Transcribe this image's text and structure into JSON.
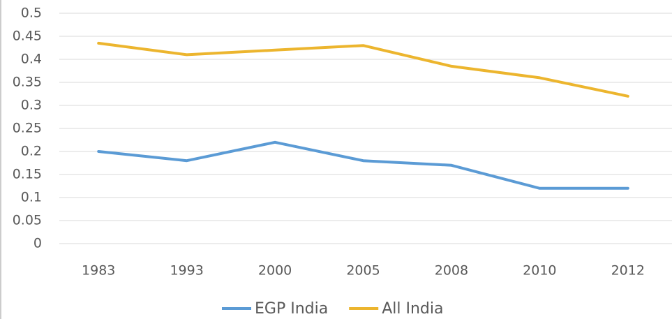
{
  "chart_data": {
    "type": "line",
    "categories": [
      "1983",
      "1993",
      "2000",
      "2005",
      "2008",
      "2010",
      "2012"
    ],
    "series": [
      {
        "name": "EGP India",
        "color": "#5b9bd5",
        "values": [
          0.2,
          0.18,
          0.22,
          0.18,
          0.17,
          0.12,
          0.12
        ]
      },
      {
        "name": "All India",
        "color": "#ecb52e",
        "values": [
          0.435,
          0.41,
          0.42,
          0.43,
          0.385,
          0.36,
          0.32
        ]
      }
    ],
    "ylim": [
      0,
      0.5
    ],
    "yticks": [
      0,
      0.05,
      0.1,
      0.15,
      0.2,
      0.25,
      0.3,
      0.35,
      0.4,
      0.45,
      0.5
    ],
    "grid": true,
    "legend": "bottom"
  }
}
